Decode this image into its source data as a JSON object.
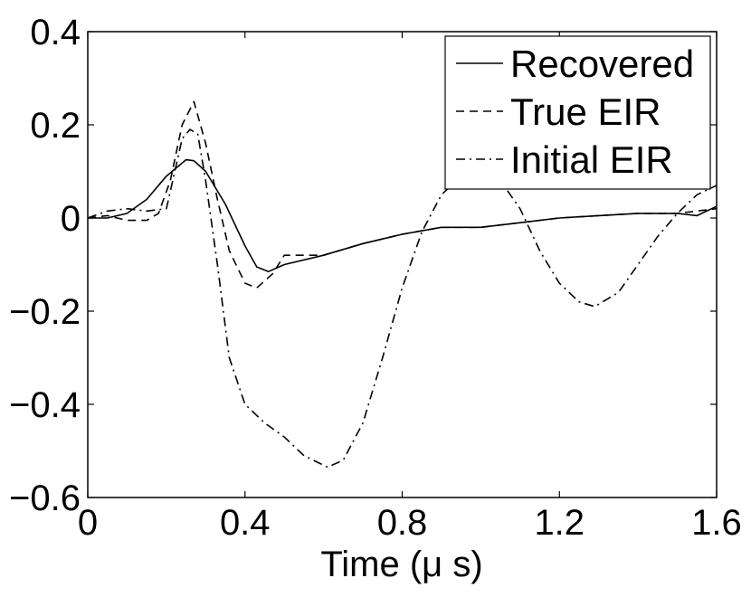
{
  "chart_data": {
    "type": "line",
    "title": "",
    "xlabel": "Time (μ s)",
    "ylabel": "",
    "xlim": [
      0,
      1.6
    ],
    "ylim": [
      -0.6,
      0.4
    ],
    "xticks": [
      0,
      0.4,
      0.8,
      1.2,
      1.6
    ],
    "xtick_labels": [
      "0",
      "0.4",
      "0.8",
      "1.2",
      "1.6"
    ],
    "yticks": [
      -0.6,
      -0.4,
      -0.2,
      0,
      0.2,
      0.4
    ],
    "ytick_labels": [
      "−0.6",
      "−0.4",
      "−0.2",
      "0",
      "0.2",
      "0.4"
    ],
    "grid": false,
    "legend_position": "top-right",
    "series": [
      {
        "name": "Recovered",
        "style": "solid",
        "color": "#000000",
        "points": [
          [
            0,
            0
          ],
          [
            0.05,
            0
          ],
          [
            0.1,
            0.01
          ],
          [
            0.15,
            0.04
          ],
          [
            0.2,
            0.09
          ],
          [
            0.25,
            0.125
          ],
          [
            0.27,
            0.123
          ],
          [
            0.3,
            0.1
          ],
          [
            0.35,
            0.03
          ],
          [
            0.4,
            -0.06
          ],
          [
            0.43,
            -0.105
          ],
          [
            0.46,
            -0.115
          ],
          [
            0.5,
            -0.1
          ],
          [
            0.6,
            -0.08
          ],
          [
            0.7,
            -0.055
          ],
          [
            0.8,
            -0.035
          ],
          [
            0.9,
            -0.02
          ],
          [
            1.0,
            -0.02
          ],
          [
            1.1,
            -0.01
          ],
          [
            1.2,
            0
          ],
          [
            1.3,
            0.005
          ],
          [
            1.4,
            0.01
          ],
          [
            1.5,
            0.01
          ],
          [
            1.55,
            0.005
          ],
          [
            1.6,
            0.025
          ]
        ]
      },
      {
        "name": "True EIR",
        "style": "dashed",
        "color": "#000000",
        "points": [
          [
            0,
            0
          ],
          [
            0.05,
            0.005
          ],
          [
            0.1,
            -0.005
          ],
          [
            0.15,
            -0.005
          ],
          [
            0.18,
            0.01
          ],
          [
            0.21,
            0.08
          ],
          [
            0.24,
            0.2
          ],
          [
            0.27,
            0.25
          ],
          [
            0.3,
            0.16
          ],
          [
            0.33,
            0.04
          ],
          [
            0.36,
            -0.07
          ],
          [
            0.4,
            -0.14
          ],
          [
            0.43,
            -0.15
          ],
          [
            0.47,
            -0.12
          ],
          [
            0.5,
            -0.08
          ],
          [
            0.6,
            -0.08
          ],
          [
            0.7,
            -0.055
          ],
          [
            0.8,
            -0.035
          ],
          [
            0.9,
            -0.02
          ],
          [
            1.0,
            -0.02
          ],
          [
            1.1,
            -0.01
          ],
          [
            1.2,
            0
          ],
          [
            1.3,
            0.005
          ],
          [
            1.4,
            0.01
          ],
          [
            1.5,
            0.01
          ],
          [
            1.6,
            0.02
          ]
        ]
      },
      {
        "name": "Initial EIR",
        "style": "dashdot",
        "color": "#000000",
        "points": [
          [
            0,
            0
          ],
          [
            0.05,
            0.015
          ],
          [
            0.1,
            0.02
          ],
          [
            0.15,
            0.015
          ],
          [
            0.2,
            0.02
          ],
          [
            0.24,
            0.17
          ],
          [
            0.26,
            0.19
          ],
          [
            0.28,
            0.18
          ],
          [
            0.3,
            0.08
          ],
          [
            0.33,
            -0.1
          ],
          [
            0.36,
            -0.3
          ],
          [
            0.4,
            -0.4
          ],
          [
            0.45,
            -0.44
          ],
          [
            0.5,
            -0.47
          ],
          [
            0.55,
            -0.51
          ],
          [
            0.61,
            -0.535
          ],
          [
            0.65,
            -0.52
          ],
          [
            0.7,
            -0.44
          ],
          [
            0.75,
            -0.3
          ],
          [
            0.8,
            -0.15
          ],
          [
            0.85,
            -0.03
          ],
          [
            0.9,
            0.05
          ],
          [
            0.95,
            0.09
          ],
          [
            1.0,
            0.1
          ],
          [
            1.05,
            0.08
          ],
          [
            1.1,
            0.02
          ],
          [
            1.15,
            -0.07
          ],
          [
            1.2,
            -0.14
          ],
          [
            1.25,
            -0.18
          ],
          [
            1.29,
            -0.19
          ],
          [
            1.35,
            -0.16
          ],
          [
            1.4,
            -0.1
          ],
          [
            1.45,
            -0.04
          ],
          [
            1.5,
            0.01
          ],
          [
            1.55,
            0.05
          ],
          [
            1.6,
            0.07
          ]
        ]
      }
    ]
  }
}
